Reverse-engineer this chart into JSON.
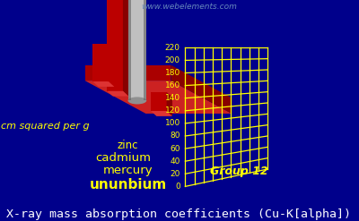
{
  "title": "X-ray mass absorption coefficients (Cu-K[alpha])",
  "ylabel": "cm squared per g",
  "group_label": "Group 12",
  "watermark": "www.webelements.com",
  "elements": [
    "zinc",
    "cadmium",
    "mercury",
    "ununbium"
  ],
  "values": [
    60,
    155,
    200,
    30
  ],
  "bar_colors": [
    "#cc0000",
    "#cc0000",
    "#c8c8c8",
    "#cc0000"
  ],
  "bar_top_colors": [
    "#ff4444",
    "#ff4444",
    "#e8e8e8",
    "#ff4444"
  ],
  "background_color": "#00008b",
  "title_color": "#ffffff",
  "label_color": "#ffff00",
  "grid_color": "#ffff00",
  "watermark_color": "#6688bb",
  "base_color": "#cc0000",
  "base_top_color": "#ff3333",
  "yticks": [
    0,
    20,
    40,
    60,
    80,
    100,
    120,
    140,
    160,
    180,
    200,
    220
  ],
  "ymax": 220,
  "title_fontsize": 9.5,
  "label_fontsize": 9,
  "tick_fontsize": 6.5,
  "watermark_fontsize": 6.5
}
